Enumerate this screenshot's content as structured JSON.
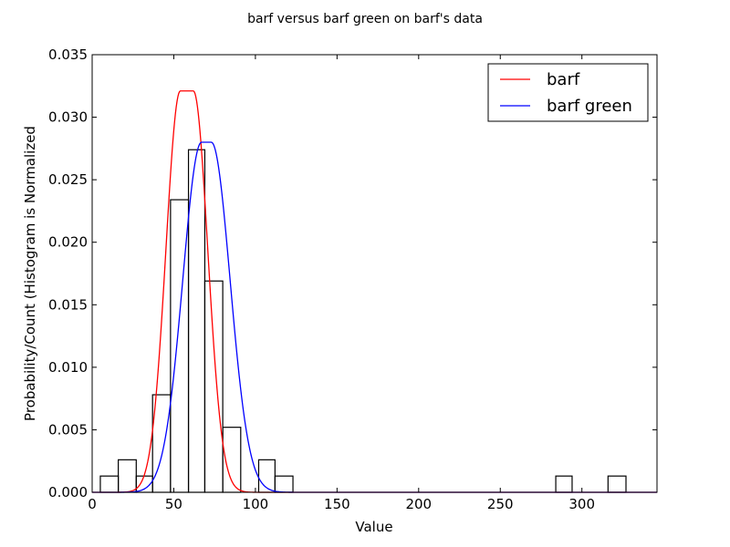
{
  "chart_data": {
    "type": "histogram_with_lines",
    "title": "barf versus barf green on barf's data",
    "xlabel": "Value",
    "ylabel": "Probability/Count (Histogram is Normalized",
    "xlim": [
      0,
      346
    ],
    "ylim": [
      0,
      0.035
    ],
    "xticks": [
      0,
      50,
      100,
      150,
      200,
      250,
      300
    ],
    "xtick_labels": [
      "0",
      "50",
      "100",
      "150",
      "200",
      "250",
      "300"
    ],
    "yticks": [
      0,
      0.005,
      0.01,
      0.015,
      0.02,
      0.025,
      0.03,
      0.035
    ],
    "ytick_labels": [
      "0.000",
      "0.005",
      "0.010",
      "0.015",
      "0.020",
      "0.025",
      "0.030",
      "0.035"
    ],
    "histogram": {
      "bins": [
        {
          "x0": 5,
          "x1": 16,
          "value": 0.0013
        },
        {
          "x0": 16,
          "x1": 27,
          "value": 0.0026
        },
        {
          "x0": 27,
          "x1": 37,
          "value": 0.0013
        },
        {
          "x0": 37,
          "x1": 48,
          "value": 0.0078
        },
        {
          "x0": 48,
          "x1": 59,
          "value": 0.0234
        },
        {
          "x0": 59,
          "x1": 69,
          "value": 0.0274
        },
        {
          "x0": 69,
          "x1": 80,
          "value": 0.0169
        },
        {
          "x0": 80,
          "x1": 91,
          "value": 0.0052
        },
        {
          "x0": 91,
          "x1": 102,
          "value": 0.0
        },
        {
          "x0": 102,
          "x1": 112,
          "value": 0.0026
        },
        {
          "x0": 112,
          "x1": 123,
          "value": 0.0013
        },
        {
          "x0": 284,
          "x1": 294,
          "value": 0.0013
        },
        {
          "x0": 316,
          "x1": 327,
          "value": 0.0013
        }
      ]
    },
    "series": [
      {
        "name": "barf",
        "color": "#ff0000",
        "mu": 58,
        "plateau_half_width": 4,
        "sigma": 8.8,
        "peak": 0.0321
      },
      {
        "name": "barf green",
        "color": "#0000ff",
        "mu": 70,
        "plateau_half_width": 3,
        "sigma": 11.5,
        "peak": 0.028
      }
    ],
    "legend": {
      "position": "top-right",
      "entries": [
        "barf",
        "barf green"
      ]
    }
  }
}
